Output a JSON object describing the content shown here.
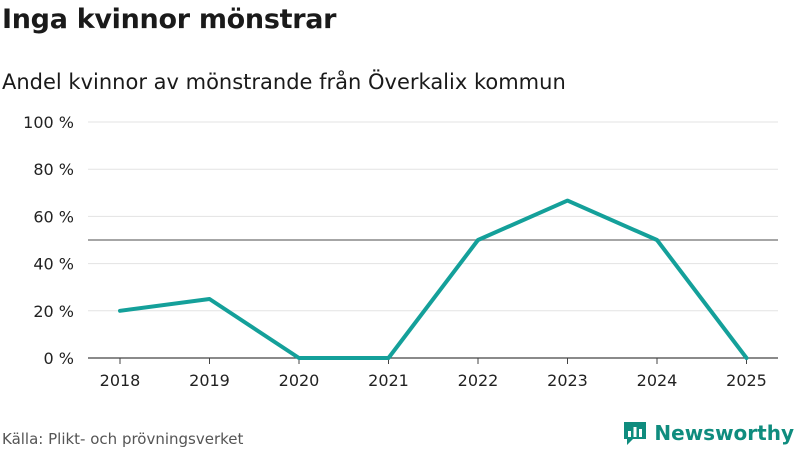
{
  "title": "Inga kvinnor mönstrar",
  "subtitle": "Andel kvinnor av mönstrande från Överkalix kommun",
  "source": "Källa: Plikt- och prövningsverket",
  "brand": {
    "label": "Newsworthy",
    "color": "#0f8c7e",
    "icon": "newsworthy-logo-icon"
  },
  "chart_data": {
    "type": "line",
    "title": "Inga kvinnor mönstrar",
    "subtitle": "Andel kvinnor av mönstrande från Överkalix kommun",
    "xlabel": "",
    "ylabel": "",
    "categories": [
      "2018",
      "2019",
      "2020",
      "2021",
      "2022",
      "2023",
      "2024",
      "2025"
    ],
    "series": [
      {
        "values": [
          20,
          25,
          0,
          0,
          50,
          66.7,
          50,
          0
        ],
        "color": "#14a09a"
      }
    ],
    "reference_line": {
      "value": 50,
      "color": "#888888"
    },
    "ylim": [
      0,
      100
    ],
    "yticks": [
      0,
      20,
      40,
      60,
      80,
      100
    ],
    "ytick_labels": [
      "0 %",
      "20 %",
      "40 %",
      "60 %",
      "80 %",
      "100 %"
    ],
    "grid": true,
    "legend": "none"
  }
}
